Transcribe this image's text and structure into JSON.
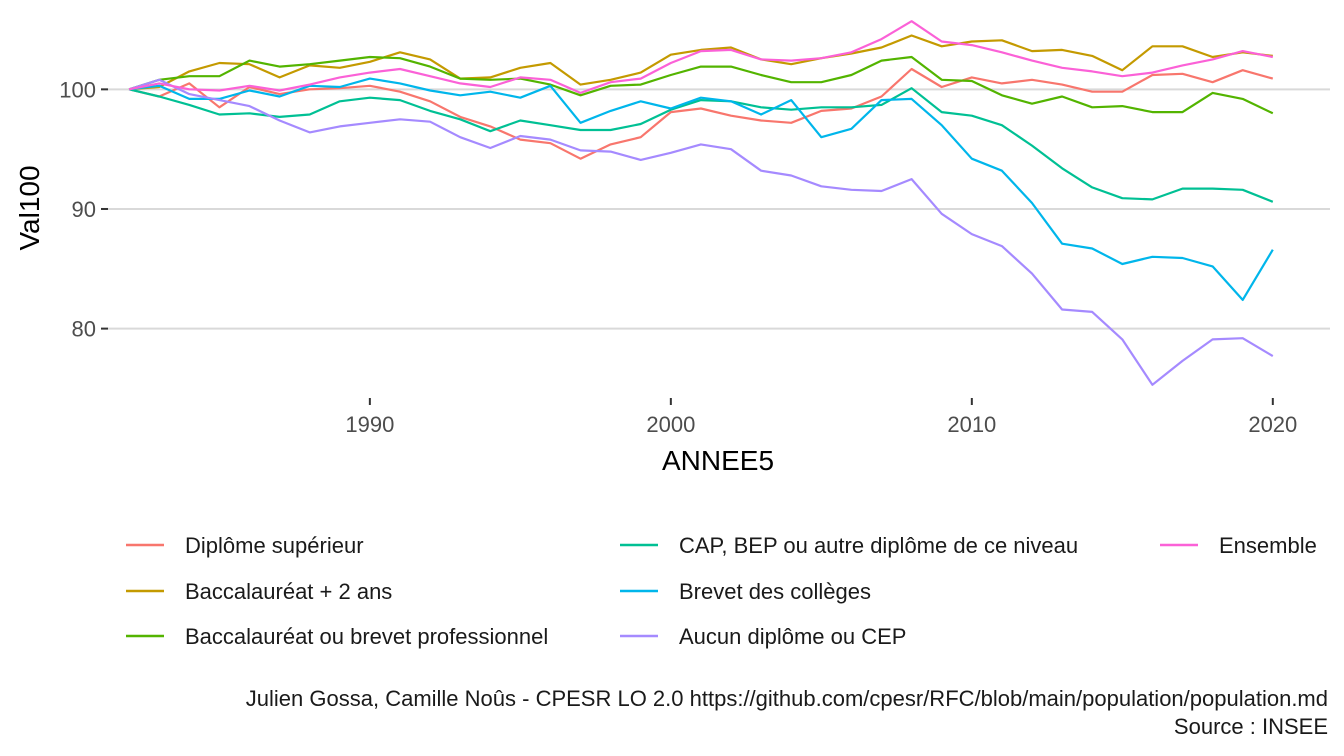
{
  "chart_data": {
    "type": "line",
    "xlabel": "ANNEE5",
    "ylabel": "Val100",
    "xlim": [
      1981.3,
      2021.9
    ],
    "ylim": [
      74.2,
      106.8
    ],
    "x_ticks": [
      1990,
      2000,
      2010,
      2020
    ],
    "y_ticks": [
      80,
      90,
      100
    ],
    "grid": true,
    "legend_position": "bottom",
    "x": [
      1982,
      1983,
      1984,
      1985,
      1986,
      1987,
      1988,
      1989,
      1990,
      1991,
      1992,
      1993,
      1994,
      1995,
      1996,
      1997,
      1998,
      1999,
      2000,
      2001,
      2002,
      2003,
      2004,
      2005,
      2006,
      2007,
      2008,
      2009,
      2010,
      2011,
      2012,
      2013,
      2014,
      2015,
      2016,
      2017,
      2018,
      2019,
      2020
    ],
    "series": [
      {
        "name": "Diplôme supérieur",
        "color": "#F8766D",
        "values": [
          100,
          99.4,
          100.5,
          98.5,
          100.2,
          99.6,
          100,
          100.1,
          100.3,
          99.8,
          99,
          97.7,
          96.9,
          95.8,
          95.5,
          94.2,
          95.4,
          96,
          98.1,
          98.4,
          97.8,
          97.4,
          97.2,
          98.2,
          98.4,
          99.4,
          101.7,
          100.2,
          101,
          100.5,
          100.8,
          100.4,
          99.8,
          99.8,
          101.2,
          101.3,
          100.6,
          101.6,
          100.9
        ]
      },
      {
        "name": "Baccalauréat + 2 ans",
        "color": "#C49A00",
        "values": [
          100,
          100.2,
          101.5,
          102.2,
          102.1,
          101,
          102,
          101.8,
          102.3,
          103.1,
          102.5,
          100.9,
          101,
          101.8,
          102.2,
          100.4,
          100.8,
          101.4,
          102.9,
          103.3,
          103.5,
          102.5,
          102.1,
          102.6,
          103,
          103.5,
          104.5,
          103.6,
          104,
          104.1,
          103.2,
          103.3,
          102.8,
          101.6,
          103.6,
          103.6,
          102.7,
          103.1,
          102.8
        ]
      },
      {
        "name": "Baccalauréat ou brevet professionnel",
        "color": "#53B400",
        "values": [
          100,
          100.8,
          101.1,
          101.1,
          102.4,
          101.9,
          102.1,
          102.4,
          102.7,
          102.6,
          101.9,
          100.9,
          100.8,
          100.9,
          100.4,
          99.5,
          100.3,
          100.4,
          101.2,
          101.9,
          101.9,
          101.2,
          100.6,
          100.6,
          101.2,
          102.4,
          102.7,
          100.8,
          100.7,
          99.5,
          98.8,
          99.4,
          98.5,
          98.6,
          98.1,
          98.1,
          99.7,
          99.2,
          98
        ]
      },
      {
        "name": "CAP, BEP ou autre diplôme de ce niveau",
        "color": "#00C094",
        "values": [
          100,
          99.4,
          98.7,
          97.9,
          98,
          97.7,
          97.9,
          99,
          99.3,
          99.1,
          98.2,
          97.5,
          96.5,
          97.4,
          97,
          96.6,
          96.6,
          97.1,
          98.3,
          99.1,
          99,
          98.5,
          98.3,
          98.5,
          98.5,
          98.7,
          100.1,
          98.1,
          97.8,
          97,
          95.3,
          93.4,
          91.8,
          90.9,
          90.8,
          91.7,
          91.7,
          91.6,
          90.6
        ]
      },
      {
        "name": "Brevet des collèges",
        "color": "#00B6EB",
        "values": [
          100,
          100.3,
          99.2,
          99.2,
          99.9,
          99.4,
          100.3,
          100.2,
          100.9,
          100.5,
          99.9,
          99.5,
          99.8,
          99.3,
          100.3,
          97.2,
          98.2,
          99,
          98.4,
          99.3,
          99,
          97.9,
          99.1,
          96,
          96.7,
          99.1,
          99.2,
          97,
          94.2,
          93.2,
          90.5,
          87.1,
          86.7,
          85.4,
          86,
          85.9,
          85.2,
          82.4,
          86.6
        ]
      },
      {
        "name": "Aucun diplôme ou CEP",
        "color": "#A58AFF",
        "values": [
          100,
          100.8,
          99.6,
          99.1,
          98.6,
          97.4,
          96.4,
          96.9,
          97.2,
          97.5,
          97.3,
          96,
          95.1,
          96.1,
          95.8,
          94.9,
          94.8,
          94.1,
          94.7,
          95.4,
          95,
          93.2,
          92.8,
          91.9,
          91.6,
          91.5,
          92.5,
          89.6,
          87.9,
          86.9,
          84.6,
          81.6,
          81.4,
          79.1,
          75.3,
          77.3,
          79.1,
          79.2,
          77.7
        ]
      },
      {
        "name": "Ensemble",
        "color": "#FB61D7",
        "values": [
          100,
          100.5,
          100,
          99.9,
          100.3,
          99.9,
          100.4,
          101,
          101.4,
          101.7,
          101.1,
          100.5,
          100.2,
          101,
          100.8,
          99.7,
          100.6,
          100.9,
          102.2,
          103.2,
          103.3,
          102.5,
          102.4,
          102.6,
          103.1,
          104.2,
          105.7,
          104,
          103.7,
          103.1,
          102.4,
          101.8,
          101.5,
          101.1,
          101.4,
          102,
          102.5,
          103.2,
          102.7
        ]
      }
    ]
  },
  "caption": {
    "line1": "Julien Gossa, Camille Noûs - CPESR LO 2.0 https://github.com/cpesr/RFC/blob/main/population/population.md",
    "line2": "Source : INSEE"
  }
}
